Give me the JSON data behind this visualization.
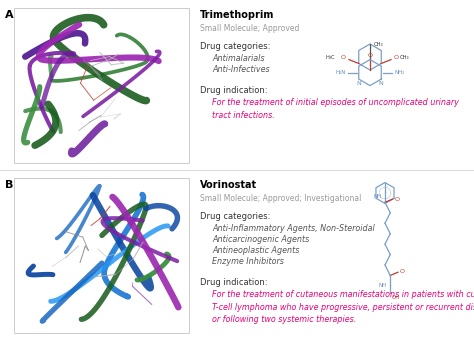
{
  "background_color": "#ffffff",
  "panel_A": {
    "label": "A",
    "drug_name": "Trimethoprim",
    "drug_type": "Small Molecule; Approved",
    "categories_label": "Drug categories:",
    "categories": [
      "Antimalarials",
      "Anti-Infectives"
    ],
    "indication_label": "Drug indication:",
    "indication_text": "For the treatment of initial episodes of uncomplicated urinary\ntract infections."
  },
  "panel_B": {
    "label": "B",
    "drug_name": "Vorinostat",
    "drug_type": "Small Molecule; Approved; Investigational",
    "categories_label": "Drug categories:",
    "categories": [
      "Anti-Inflammatory Agents, Non-Steroidal",
      "Anticarcinogenic Agents",
      "Antineoplastic Agents",
      "Enzyme Inhibitors"
    ],
    "indication_label": "Drug indication:",
    "indication_text": "For the treatment of cutaneous manifestations in patients with cutaneous\nT-cell lymphoma who have progressive, persistent or recurrent disease on\nor following two systemic therapies."
  },
  "text_colors": {
    "drug_name": "#000000",
    "drug_type": "#999999",
    "categories_label": "#333333",
    "categories_italic": "#555555",
    "indication_label": "#333333",
    "indication_italic": "#e8007a",
    "panel_label": "#000000"
  },
  "font_sizes": {
    "drug_name": 7.0,
    "drug_type": 5.5,
    "categories_label": 6.0,
    "categories": 5.8,
    "indication_label": 6.0,
    "indication": 5.8,
    "panel_label": 8.0
  },
  "colorsA_ribbons": [
    "#2e7d32",
    "#388e3c",
    "#1b5e20",
    "#6a1b9a",
    "#7b1fa2",
    "#4a148c",
    "#9c27b0",
    "#aaaaaa",
    "#cccccc",
    "#1565c0",
    "#e8f5e9"
  ],
  "colorsB_ribbons": [
    "#0d47a1",
    "#1565c0",
    "#1976d2",
    "#2196f3",
    "#42a5f5",
    "#1b5e20",
    "#388e3c",
    "#7b1fa2",
    "#9c27b0",
    "#aaaaaa",
    "#e3f2fd"
  ],
  "struct_color": "#7b9fc7",
  "o_color": "#c0392b",
  "n_color": "#6a8fc0"
}
